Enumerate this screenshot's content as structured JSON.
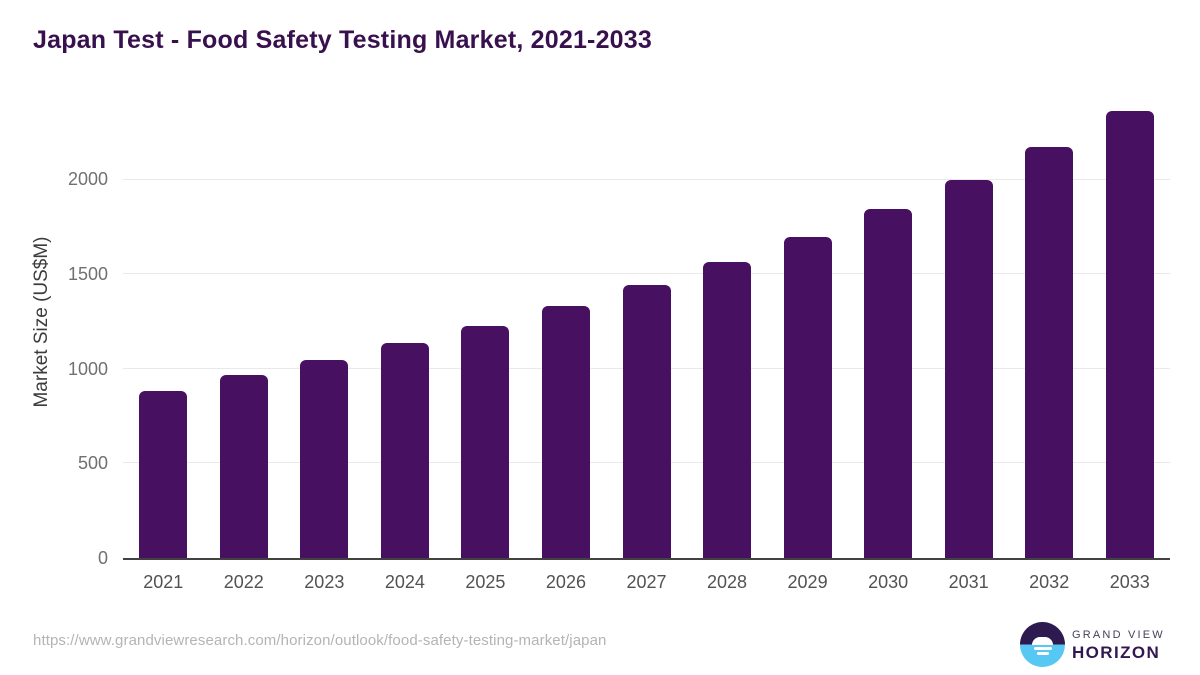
{
  "title": "Japan Test - Food Safety Testing Market, 2021-2033",
  "colors": {
    "bar": "#471060",
    "title_accent": "#38104e",
    "logo_dark": "#2d1a4e",
    "logo_blue": "#57c7f4",
    "gridline": "#e9e9e9",
    "axis_line": "#424242"
  },
  "footer": {
    "source_url": "https://www.grandviewresearch.com/horizon/outlook/food-safety-testing-market/japan",
    "logo": {
      "line1": "GRAND VIEW",
      "line2": "HORIZON"
    }
  },
  "chart_data": {
    "type": "bar",
    "title": "Japan Test - Food Safety Testing Market, 2021-2033",
    "categories": [
      "2021",
      "2022",
      "2023",
      "2024",
      "2025",
      "2026",
      "2027",
      "2028",
      "2029",
      "2030",
      "2031",
      "2032",
      "2033"
    ],
    "values": [
      885,
      965,
      1045,
      1135,
      1225,
      1330,
      1445,
      1565,
      1695,
      1845,
      1995,
      2170,
      2360
    ],
    "xlabel": "",
    "ylabel": "Market Size (US$M)",
    "yticks": [
      0,
      500,
      1000,
      1500,
      2000
    ],
    "ylim": [
      0,
      2420
    ],
    "grid": "horizontal",
    "legend": "none",
    "bar_color": "#471060"
  }
}
